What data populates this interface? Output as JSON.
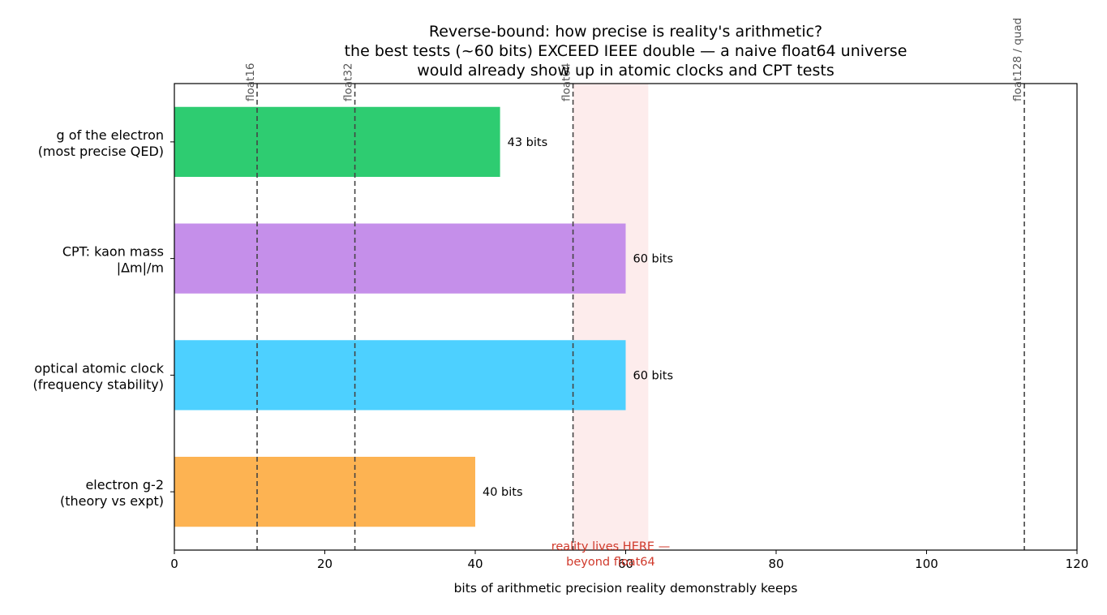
{
  "chart_data": {
    "type": "bar",
    "orientation": "horizontal",
    "title": [
      "Reverse-bound: how precise is reality's arithmetic?",
      "the best tests (~60 bits) EXCEED IEEE double — a naive float64 universe",
      "would already show up in atomic clocks and CPT tests"
    ],
    "xlabel": "bits of arithmetic precision reality demonstrably keeps",
    "xlim": [
      0,
      120
    ],
    "xticks": [
      0,
      20,
      40,
      60,
      80,
      100,
      120
    ],
    "grid": false,
    "categories": [
      [
        "g of the electron",
        "(most precise QED)"
      ],
      [
        "CPT: kaon mass",
        "|Δm|/m"
      ],
      [
        "optical atomic clock",
        "(frequency stability)"
      ],
      [
        "electron g-2",
        "(theory vs expt)"
      ]
    ],
    "values": [
      43.3,
      60,
      60,
      40
    ],
    "value_labels": [
      "43 bits",
      "60 bits",
      "60 bits",
      "40 bits"
    ],
    "bar_colors": [
      "#2ecc71",
      "#c58fea",
      "#4dd0ff",
      "#fdb352"
    ],
    "reference_lines": [
      {
        "label": "float16",
        "x": 11
      },
      {
        "label": "float32",
        "x": 24
      },
      {
        "label": "float64",
        "x": 53
      },
      {
        "label": "float128 / quad",
        "x": 113
      }
    ],
    "reference_line_color": "#444444",
    "shaded_region": {
      "x": [
        53,
        63
      ],
      "color": "#fdecec",
      "annotation": [
        "reality lives HERE —",
        "beyond float64"
      ],
      "annotation_color": "#d0392b"
    }
  }
}
